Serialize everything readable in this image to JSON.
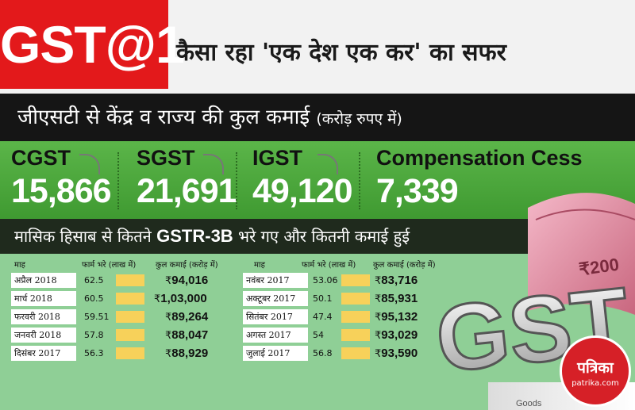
{
  "header": {
    "badge": "GST@1",
    "headline": "कैसा रहा 'एक देश एक कर' का सफर"
  },
  "revenue": {
    "title": "जीएसटी से केंद्र व राज्य की कुल कमाई",
    "unit": "(करोड़ रुपए में)",
    "stats": [
      {
        "label": "CGST",
        "value": "15,866"
      },
      {
        "label": "SGST",
        "value": "21,691"
      },
      {
        "label": "IGST",
        "value": "49,120"
      },
      {
        "label": "Compensation Cess",
        "value": "7,339"
      }
    ]
  },
  "monthly": {
    "title_pre": "मासिक हिसाब से कितने",
    "title_bold": "GSTR-3B",
    "title_post": "भरे गए और कितनी कमाई हुई",
    "headers": {
      "month": "माह",
      "forms": "फार्म भरे (लाख में)",
      "earning": "कुल कमाई (करोड़ में)"
    },
    "left_rows": [
      {
        "month": "अप्रैल 2018",
        "forms": "62.5",
        "amount": "94,016"
      },
      {
        "month": "मार्च 2018",
        "forms": "60.5",
        "amount": "1,03,000"
      },
      {
        "month": "फरवरी 2018",
        "forms": "59.51",
        "amount": "89,264"
      },
      {
        "month": "जनवरी 2018",
        "forms": "57.8",
        "amount": "88,047"
      },
      {
        "month": "दिसंबर 2017",
        "forms": "56.3",
        "amount": "88,929"
      }
    ],
    "right_rows": [
      {
        "month": "नवंबर 2017",
        "forms": "53.06",
        "amount": "83,716"
      },
      {
        "month": "अक्टूबर 2017",
        "forms": "50.1",
        "amount": "85,931"
      },
      {
        "month": "सितंबर 2017",
        "forms": "47.4",
        "amount": "95,132"
      },
      {
        "month": "अगस्त 2017",
        "forms": "54",
        "amount": "93,029"
      },
      {
        "month": "जुलाई 2017",
        "forms": "56.8",
        "amount": "93,590"
      }
    ],
    "currency": "₹"
  },
  "illustration": {
    "gst_text": "GST",
    "note_text": "₹200",
    "goods_text": "Goods"
  },
  "logo": {
    "name": "पत्रिका",
    "site": "patrika.com"
  },
  "colors": {
    "red": "#e3191b",
    "green": "#4caf3f",
    "table_bg": "#8fcf96",
    "bar": "#f7d15a"
  }
}
